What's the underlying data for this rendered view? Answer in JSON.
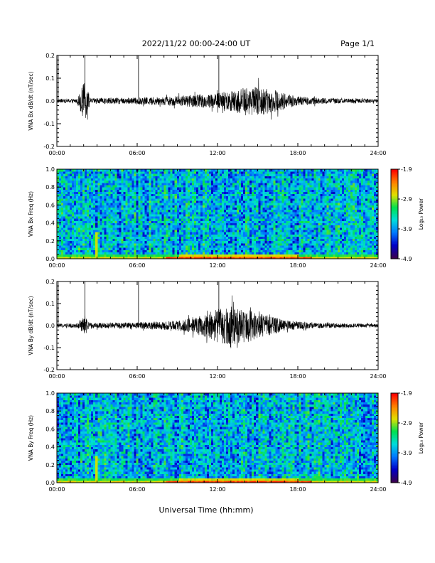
{
  "header": {
    "title": "2022/11/22  00:00-24:00 UT",
    "page": "Page 1/1"
  },
  "footer": {
    "xlabel": "Universal Time (hh:mm)"
  },
  "colors": {
    "trace": "#000000",
    "colormap": [
      "#3a0050",
      "#0000c8",
      "#0078ff",
      "#00dcdc",
      "#00e050",
      "#e0e000",
      "#ff8000",
      "#ff0000"
    ]
  },
  "chart_data": [
    {
      "type": "line",
      "id": "bx-waveform",
      "ylabel": "VNA Bx dB/dt (nT/sec)",
      "xlim": [
        "00:00",
        "24:00"
      ],
      "xticks": [
        "00:00",
        "06:00",
        "12:00",
        "18:00",
        "24:00"
      ],
      "ylim": [
        -0.2,
        0.2
      ],
      "yticks": [
        "0.2",
        "0.1",
        "0.0",
        "-0.1",
        "-0.2"
      ],
      "baseline": 0.0,
      "spikes_hours": [
        0.1,
        2.1,
        6.1,
        12.1
      ],
      "envelope": [
        {
          "hour": 0,
          "amp": 0.008
        },
        {
          "hour": 1.5,
          "amp": 0.01
        },
        {
          "hour": 2.1,
          "amp": 0.09
        },
        {
          "hour": 2.5,
          "amp": 0.012
        },
        {
          "hour": 6,
          "amp": 0.015
        },
        {
          "hour": 9,
          "amp": 0.022
        },
        {
          "hour": 11,
          "amp": 0.03
        },
        {
          "hour": 12,
          "amp": 0.035
        },
        {
          "hour": 13.5,
          "amp": 0.055
        },
        {
          "hour": 15,
          "amp": 0.065
        },
        {
          "hour": 16.5,
          "amp": 0.045
        },
        {
          "hour": 18,
          "amp": 0.02
        },
        {
          "hour": 20,
          "amp": 0.012
        },
        {
          "hour": 24,
          "amp": 0.008
        }
      ]
    },
    {
      "type": "heatmap",
      "id": "bx-spectrogram",
      "ylabel": "VNA Bx Freq (Hz)",
      "xlim": [
        "00:00",
        "24:00"
      ],
      "xticks": [
        "00:00",
        "06:00",
        "12:00",
        "18:00",
        "24:00"
      ],
      "ylim": [
        0.0,
        1.0
      ],
      "yticks": [
        "1.0",
        "0.8",
        "0.6",
        "0.4",
        "0.2",
        "0.0"
      ],
      "colorbar": {
        "label": "Log₁₀ Power",
        "range": [
          -4.9,
          -1.9
        ],
        "ticks": [
          "-1.9",
          "-2.9",
          "-3.9",
          "-4.9"
        ]
      }
    },
    {
      "type": "line",
      "id": "by-waveform",
      "ylabel": "VNA By dB/dt (nT/sec)",
      "xlim": [
        "00:00",
        "24:00"
      ],
      "xticks": [
        "00:00",
        "06:00",
        "12:00",
        "18:00",
        "24:00"
      ],
      "ylim": [
        -0.2,
        0.2
      ],
      "yticks": [
        "0.2",
        "0.1",
        "0.0",
        "-0.1",
        "-0.2"
      ],
      "baseline": 0.0,
      "spikes_hours": [
        0.1,
        2.1,
        6.1,
        12.1
      ],
      "envelope": [
        {
          "hour": 0,
          "amp": 0.008
        },
        {
          "hour": 1.5,
          "amp": 0.01
        },
        {
          "hour": 2.1,
          "amp": 0.04
        },
        {
          "hour": 2.5,
          "amp": 0.012
        },
        {
          "hour": 6,
          "amp": 0.015
        },
        {
          "hour": 9,
          "amp": 0.022
        },
        {
          "hour": 11,
          "amp": 0.05
        },
        {
          "hour": 12.5,
          "amp": 0.09
        },
        {
          "hour": 14,
          "amp": 0.08
        },
        {
          "hour": 15.5,
          "amp": 0.05
        },
        {
          "hour": 17,
          "amp": 0.025
        },
        {
          "hour": 19,
          "amp": 0.012
        },
        {
          "hour": 24,
          "amp": 0.008
        }
      ]
    },
    {
      "type": "heatmap",
      "id": "by-spectrogram",
      "ylabel": "VNA By Freq (Hz)",
      "xlim": [
        "00:00",
        "24:00"
      ],
      "xticks": [
        "00:00",
        "06:00",
        "12:00",
        "18:00",
        "24:00"
      ],
      "ylim": [
        0.0,
        1.0
      ],
      "yticks": [
        "1.0",
        "0.8",
        "0.6",
        "0.4",
        "0.2",
        "0.0"
      ],
      "colorbar": {
        "label": "Log₁₀ Power",
        "range": [
          -4.9,
          -1.9
        ],
        "ticks": [
          "-1.9",
          "-2.9",
          "-3.9",
          "-4.9"
        ]
      }
    }
  ]
}
